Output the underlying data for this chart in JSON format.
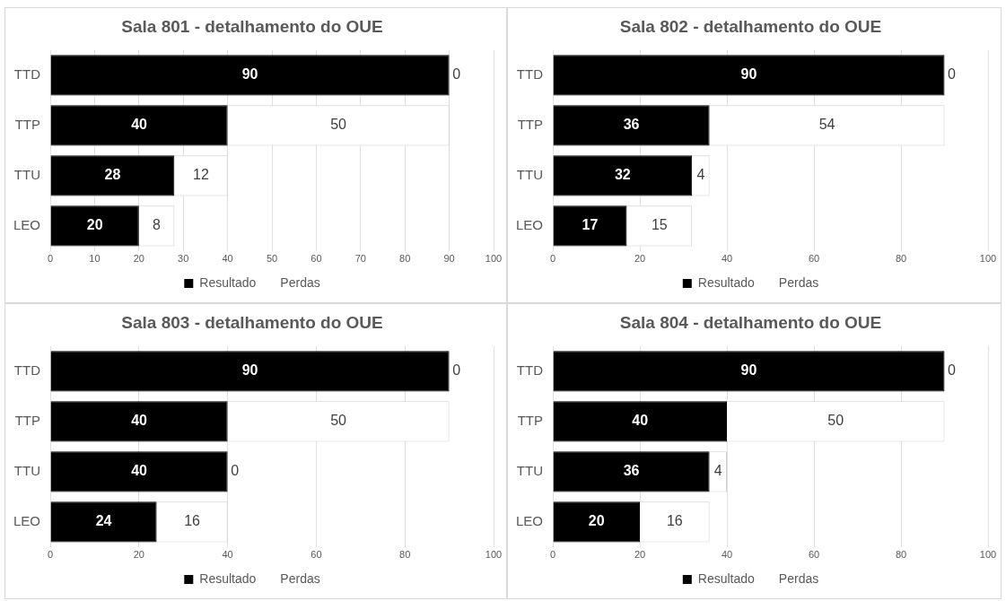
{
  "chart_data": [
    {
      "type": "bar",
      "orientation": "horizontal",
      "stacked": true,
      "title": "Sala 801 - detalhamento do OUE",
      "categories": [
        "TTD",
        "TTP",
        "TTU",
        "LEO"
      ],
      "series": [
        {
          "name": "Resultado",
          "color": "#000000",
          "values": [
            90,
            40,
            28,
            20
          ]
        },
        {
          "name": "Perdas",
          "color": "#ffffff",
          "values": [
            0,
            50,
            12,
            8
          ]
        }
      ],
      "xlim": [
        0,
        100
      ],
      "xticks": [
        0,
        10,
        20,
        30,
        40,
        50,
        60,
        70,
        80,
        90,
        100
      ],
      "grid": "x",
      "legend": "bottom",
      "data_labels": true
    },
    {
      "type": "bar",
      "orientation": "horizontal",
      "stacked": true,
      "title": "Sala 802 - detalhamento do OUE",
      "categories": [
        "TTD",
        "TTP",
        "TTU",
        "LEO"
      ],
      "series": [
        {
          "name": "Resultado",
          "color": "#000000",
          "values": [
            90,
            36,
            32,
            17
          ]
        },
        {
          "name": "Perdas",
          "color": "#ffffff",
          "values": [
            0,
            54,
            4,
            15
          ]
        }
      ],
      "xlim": [
        0,
        100
      ],
      "xticks": [
        0,
        20,
        40,
        60,
        80,
        100
      ],
      "grid": "x",
      "legend": "bottom",
      "data_labels": true
    },
    {
      "type": "bar",
      "orientation": "horizontal",
      "stacked": true,
      "title": "Sala 803 - detalhamento do OUE",
      "categories": [
        "TTD",
        "TTP",
        "TTU",
        "LEO"
      ],
      "series": [
        {
          "name": "Resultado",
          "color": "#000000",
          "values": [
            90,
            40,
            40,
            24
          ]
        },
        {
          "name": "Perdas",
          "color": "#ffffff",
          "values": [
            0,
            50,
            0,
            16
          ]
        }
      ],
      "xlim": [
        0,
        100
      ],
      "xticks": [
        0,
        20,
        40,
        60,
        80,
        100
      ],
      "grid": "x",
      "legend": "bottom",
      "data_labels": true
    },
    {
      "type": "bar",
      "orientation": "horizontal",
      "stacked": true,
      "title": "Sala 804 - detalhamento do OUE",
      "categories": [
        "TTD",
        "TTP",
        "TTU",
        "LEO"
      ],
      "series": [
        {
          "name": "Resultado",
          "color": "#000000",
          "values": [
            90,
            40,
            36,
            20
          ]
        },
        {
          "name": "Perdas",
          "color": "#ffffff",
          "values": [
            0,
            50,
            4,
            16
          ]
        }
      ],
      "xlim": [
        0,
        100
      ],
      "xticks": [
        0,
        20,
        40,
        60,
        80,
        100
      ],
      "grid": "x",
      "legend": "bottom",
      "data_labels": true
    }
  ]
}
